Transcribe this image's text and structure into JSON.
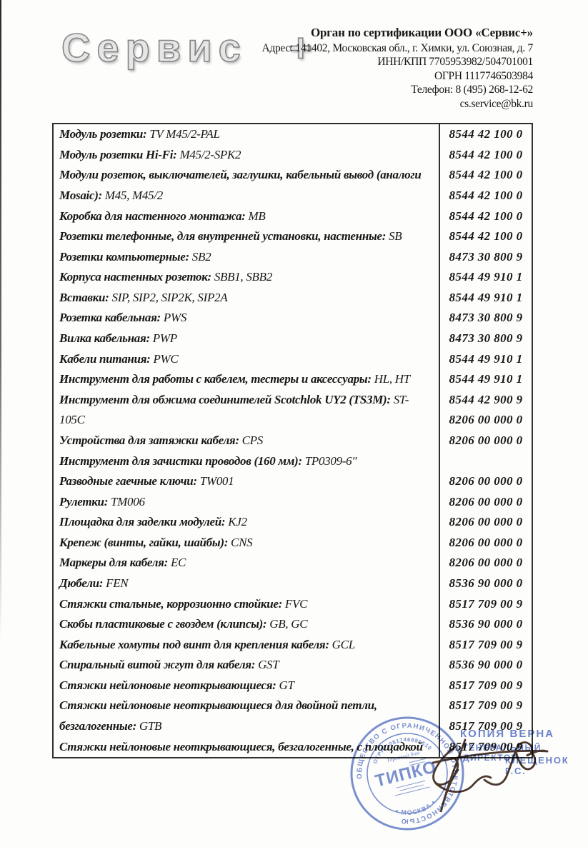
{
  "header": {
    "logo_text": "Сервис +",
    "org_name": "Орган по сертификации ООО «Сервис+»",
    "address": "Адрес: 141402, Московская обл., г. Химки, ул. Союзная, д. 7",
    "inn_kpp": "ИНН/КПП 7705953982/504701001",
    "ogrn": "ОГРН 1117746503984",
    "phone": "Телефон: 8 (495) 268-12-62",
    "email": "cs.service@bk.ru"
  },
  "table": {
    "rows": [
      {
        "bold": "Модуль розетки:",
        "rest": "TV M45/2-PAL",
        "code": "8544 42 100 0"
      },
      {
        "bold": "Модуль розетки Hi-Fi:",
        "rest": "M45/2-SPK2",
        "code": "8544 42 100 0"
      },
      {
        "bold": "Модули розеток, выключателей, заглушки, кабельный вывод (аналоги",
        "rest": "",
        "code": "8544 42 100 0"
      },
      {
        "bold": "Mosaic):",
        "rest": "M45, M45/2",
        "code": "8544 42 100 0"
      },
      {
        "bold": "Коробка для настенного монтажа:",
        "rest": "MB",
        "code": "8544 42 100 0"
      },
      {
        "bold": "Розетки телефонные, для внутренней установки, настенные:",
        "rest": "SB",
        "code": "8544 42 100 0"
      },
      {
        "bold": "Розетки компьютерные:",
        "rest": "SB2",
        "code": "8473 30 800 9"
      },
      {
        "bold": "Корпуса настенных розеток:",
        "rest": "SBB1, SBB2",
        "code": "8544 49 910 1"
      },
      {
        "bold": "Вставки:",
        "rest": "SIP, SIP2, SIP2K, SIP2A",
        "code": "8544 49 910 1"
      },
      {
        "bold": "Розетка кабельная:",
        "rest": "PWS",
        "code": "8473 30 800 9"
      },
      {
        "bold": "Вилка кабельная:",
        "rest": "PWP",
        "code": "8473 30 800 9"
      },
      {
        "bold": "Кабели питания:",
        "rest": "PWC",
        "code": "8544 49 910 1"
      },
      {
        "bold": "Инструмент для работы с кабелем, тестеры и аксессуары:",
        "rest": "HL, HT",
        "code": "8544 49 910 1"
      },
      {
        "bold": "Инструмент для обжима соединителей Scotchlok UY2 (TS3M):",
        "rest": "ST-",
        "code": "8544 42 900 9"
      },
      {
        "bold": "",
        "rest": "105C",
        "code": "8206 00 000 0"
      },
      {
        "bold": "Устройства для затяжки кабеля:",
        "rest": "CPS",
        "code": "8206 00 000 0"
      },
      {
        "bold": "Инструмент для зачистки проводов (160 мм):",
        "rest": "TP0309-6\"",
        "code": ""
      },
      {
        "bold": "Разводные гаечные ключи:",
        "rest": "TW001",
        "code": "8206 00 000 0"
      },
      {
        "bold": "Рулетки:",
        "rest": "TM006",
        "code": "8206 00 000 0"
      },
      {
        "bold": "Площадка для заделки модулей:",
        "rest": "KJ2",
        "code": "8206 00 000 0"
      },
      {
        "bold": "Крепеж (винты, гайки, шайбы):",
        "rest": "CNS",
        "code": "8206 00 000 0"
      },
      {
        "bold": "Маркеры для кабеля:",
        "rest": "EC",
        "code": "8206 00 000 0"
      },
      {
        "bold": "Дюбели:",
        "rest": "FEN",
        "code": "8536 90 000 0"
      },
      {
        "bold": "Стяжки стальные, коррозионно стойкие:",
        "rest": "FVC",
        "code": "8517 709 00 9"
      },
      {
        "bold": "Скобы пластиковые с гвоздем (клипсы):",
        "rest": "GB, GC",
        "code": "8536 90 000 0"
      },
      {
        "bold": "Кабельные хомуты под винт для крепления кабеля:",
        "rest": "GCL",
        "code": "8517 709 00 9"
      },
      {
        "bold": "Спиральный витой жгут для кабеля:",
        "rest": "GST",
        "code": "8536 90 000 0"
      },
      {
        "bold": "Стяжки нейлоновые неоткрывающиеся:",
        "rest": "GT",
        "code": "8517 709 00 9"
      },
      {
        "bold": "Стяжки нейлоновые неоткрывающиеся для двойной петли,",
        "rest": "",
        "code": "8517 709 00 9"
      },
      {
        "bold": "безгалогенные:",
        "rest": "GTB",
        "code": "8517 709 00 9"
      },
      {
        "bold": "Стяжки нейлоновые неоткрывающиеся, безгалогенные, с площадкой",
        "rest": "",
        "code": "8517 709 00 9"
      }
    ]
  },
  "stamps": {
    "copy_stamp": {
      "word1": "КОПИЯ",
      "word2": "ВЕРНА",
      "line2": "ГЕНЕРАЛЬНЫЙ ДИРЕКТОР",
      "line3": "КЛЕЩЕНОК Г.С."
    },
    "round_stamp": {
      "ring_text": "ОБЩЕСТВО С ОГРАНИЧЕННОЙ ОТВЕТСТВЕННОСТЬЮ",
      "ogrn_text": "ОГРН 1081746895510",
      "bottom_text": "• МОСКВА •",
      "small_text": "Торговый дом",
      "center_text": "ТИПКО"
    }
  },
  "colors": {
    "stamp_blue": "#5d77c8",
    "signature_brown": "#4b382f",
    "table_border": "#2f2f2f"
  }
}
